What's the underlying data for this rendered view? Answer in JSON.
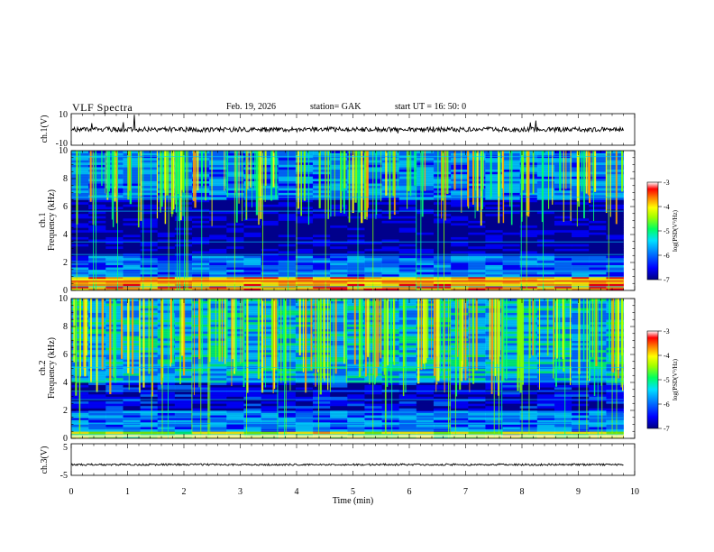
{
  "header": {
    "title": "VLF  Spectra",
    "date": "Feb. 19, 2026",
    "station": "station= GAK",
    "start_ut": "start  UT  =    16: 50: 0"
  },
  "chart_data": [
    {
      "type": "line",
      "id": "ch1-waveform",
      "title": "VLF  Spectra",
      "ylabel": "ch.1(V)",
      "ylim": [
        -10,
        10
      ],
      "yticks": [
        "10",
        "-10"
      ],
      "xlim": [
        0,
        10
      ],
      "description_values": {
        "baseline": 0,
        "noise_amplitude": 1.5
      }
    },
    {
      "type": "heatmap",
      "id": "ch1-spectrogram",
      "ylabel": "ch.1\nFrequency  (kHz)",
      "ylabel_lines": [
        "ch.1",
        "Frequency  (kHz)"
      ],
      "ylim": [
        0,
        10
      ],
      "yticks": [
        "0",
        "2",
        "4",
        "6",
        "8",
        "10"
      ],
      "xlim": [
        0,
        10
      ],
      "colorbar": {
        "label": "log(PSD(V²/Hz)",
        "ticks": [
          "-3",
          "-4",
          "-5",
          "-6",
          "-7"
        ],
        "range": [
          -7,
          -3
        ]
      }
    },
    {
      "type": "heatmap",
      "id": "ch2-spectrogram",
      "ylabel": "ch.2\nFrequency  (kHz)",
      "ylabel_lines": [
        "ch.2",
        "Frequency  (kHz)"
      ],
      "ylim": [
        0,
        10
      ],
      "yticks": [
        "0",
        "2",
        "4",
        "6",
        "8",
        "10"
      ],
      "xlim": [
        0,
        10
      ],
      "colorbar": {
        "label": "log(PSD(V²/Hz)",
        "ticks": [
          "-3",
          "-4",
          "-5",
          "-6",
          "-7"
        ],
        "range": [
          -7,
          -3
        ]
      }
    },
    {
      "type": "line",
      "id": "ch3-waveform",
      "ylabel": "ch.3(V)",
      "ylim": [
        -5,
        5
      ],
      "yticks": [
        "5",
        "-5"
      ],
      "xlim": [
        0,
        10
      ],
      "description_values": {
        "baseline": -1.6,
        "noise_amplitude": 0.3
      }
    }
  ],
  "xaxis": {
    "label": "Time  (min)",
    "ticks": [
      "0",
      "1",
      "2",
      "3",
      "4",
      "5",
      "6",
      "7",
      "8",
      "9",
      "10"
    ],
    "data_end": 9.8
  },
  "colors": {
    "colormap": [
      "#00008b",
      "#0000ff",
      "#0070ff",
      "#00d0ff",
      "#00ff70",
      "#80ff00",
      "#ffff00",
      "#ffa000",
      "#ff0000",
      "#ffffff"
    ]
  }
}
